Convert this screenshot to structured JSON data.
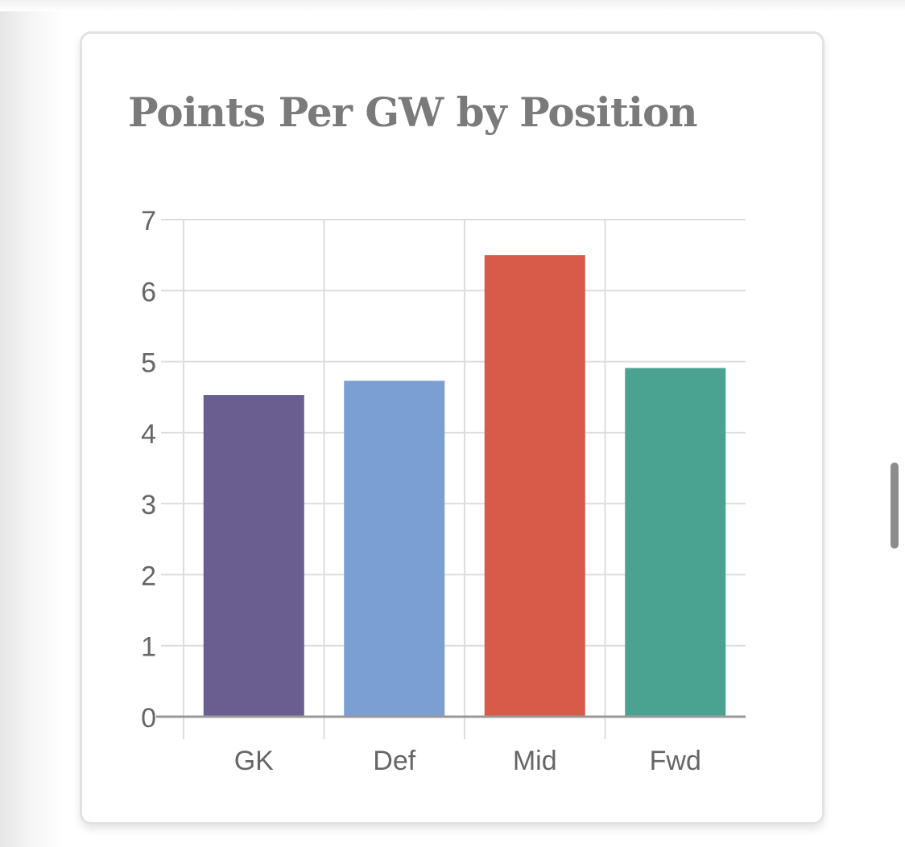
{
  "card": {
    "title": "Points Per GW by Position"
  },
  "chart_data": {
    "type": "bar",
    "title": "Points Per GW by Position",
    "xlabel": "",
    "ylabel": "",
    "categories": [
      "GK",
      "Def",
      "Mid",
      "Fwd"
    ],
    "values": [
      4.53,
      4.73,
      6.5,
      4.91
    ],
    "ylim": [
      0,
      7
    ],
    "yticks": [
      0,
      1,
      2,
      3,
      4,
      5,
      6,
      7
    ],
    "grid": true,
    "legend": "none",
    "colors": [
      "#6a5d8f",
      "#7b9fd2",
      "#d85a49",
      "#4aa291"
    ]
  },
  "colors": {
    "title": "#7a7a7a",
    "tick_label": "#666666",
    "grid": "#dddddd",
    "axis": "#999999"
  }
}
